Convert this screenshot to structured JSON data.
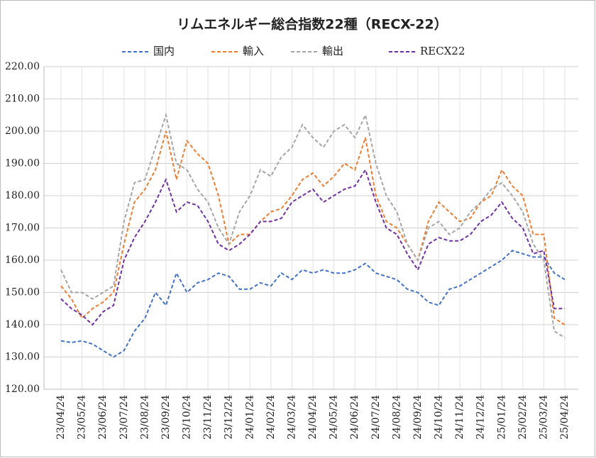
{
  "chart_data": {
    "type": "line",
    "title": "リムエネルギー総合指数22種（RECX-22）",
    "categories": [
      "23/04/24",
      null,
      "23/05/24",
      null,
      "23/06/24",
      null,
      "23/07/24",
      null,
      "23/08/24",
      null,
      "23/09/24",
      null,
      "23/10/24",
      null,
      "23/11/24",
      null,
      "23/12/24",
      null,
      "24/01/24",
      null,
      "24/02/24",
      null,
      "24/03/24",
      null,
      "24/04/24",
      null,
      "24/05/24",
      null,
      "24/06/24",
      null,
      "24/07/24",
      null,
      "24/08/24",
      null,
      "24/09/24",
      null,
      "24/10/24",
      null,
      "24/11/24",
      null,
      "24/12/24",
      null,
      "25/01/24",
      null,
      "25/02/24",
      null,
      "25/03/24",
      null,
      "25/04/24"
    ],
    "series": [
      {
        "name": "国内",
        "color": "#4472c4",
        "values": [
          135,
          134.5,
          135,
          134,
          132,
          130,
          132,
          138,
          142,
          150,
          146,
          156,
          150,
          153,
          154,
          156,
          155,
          151,
          151,
          153,
          152,
          156,
          154,
          157,
          156,
          157,
          156,
          156,
          157,
          159,
          156,
          155,
          154,
          151,
          150,
          147,
          146,
          151,
          152,
          154,
          156,
          158,
          160,
          163,
          162,
          161,
          161,
          156,
          154
        ]
      },
      {
        "name": "輸入",
        "color": "#ed7d31",
        "values": [
          152,
          148,
          142,
          145,
          147,
          150,
          165,
          178,
          182,
          188,
          200,
          185,
          197,
          193,
          190,
          180,
          165,
          168,
          168,
          172,
          175,
          176,
          180,
          185,
          187,
          183,
          186,
          190,
          188,
          198,
          180,
          172,
          170,
          165,
          160,
          172,
          178,
          175,
          172,
          173,
          178,
          180,
          188,
          183,
          180,
          168,
          168,
          142,
          140
        ]
      },
      {
        "name": "輸出",
        "color": "#a5a5a5",
        "values": [
          157,
          150,
          150,
          148,
          150,
          152,
          172,
          184,
          185,
          195,
          205,
          190,
          188,
          182,
          178,
          170,
          165,
          175,
          180,
          188,
          186,
          192,
          195,
          202,
          198,
          195,
          200,
          202,
          198,
          205,
          190,
          180,
          175,
          165,
          160,
          170,
          172,
          168,
          170,
          175,
          178,
          182,
          184,
          180,
          175,
          165,
          160,
          138,
          136
        ]
      },
      {
        "name": "RECX22",
        "color": "#7030a0",
        "values": [
          148,
          145,
          143,
          140,
          144,
          146,
          160,
          167,
          172,
          178,
          185,
          175,
          178,
          177,
          172,
          165,
          163,
          165,
          168,
          172,
          172,
          173,
          178,
          180,
          182,
          178,
          180,
          182,
          183,
          188,
          178,
          170,
          168,
          162,
          157,
          165,
          167,
          166,
          166,
          168,
          172,
          174,
          178,
          173,
          170,
          162,
          163,
          145,
          145
        ]
      }
    ],
    "ylim": [
      120,
      220
    ],
    "yticks": [
      {
        "value": 120,
        "label": "120.00"
      },
      {
        "value": 130,
        "label": "130.00"
      },
      {
        "value": 140,
        "label": "140.00"
      },
      {
        "value": 150,
        "label": "150.00"
      },
      {
        "value": 160,
        "label": "160.00"
      },
      {
        "value": 170,
        "label": "170.00"
      },
      {
        "value": 180,
        "label": "180.00"
      },
      {
        "value": 190,
        "label": "190.00"
      },
      {
        "value": 200,
        "label": "200.00"
      },
      {
        "value": 210,
        "label": "210.00"
      },
      {
        "value": 220,
        "label": "220.00"
      }
    ],
    "grid": true,
    "legend": "top"
  }
}
